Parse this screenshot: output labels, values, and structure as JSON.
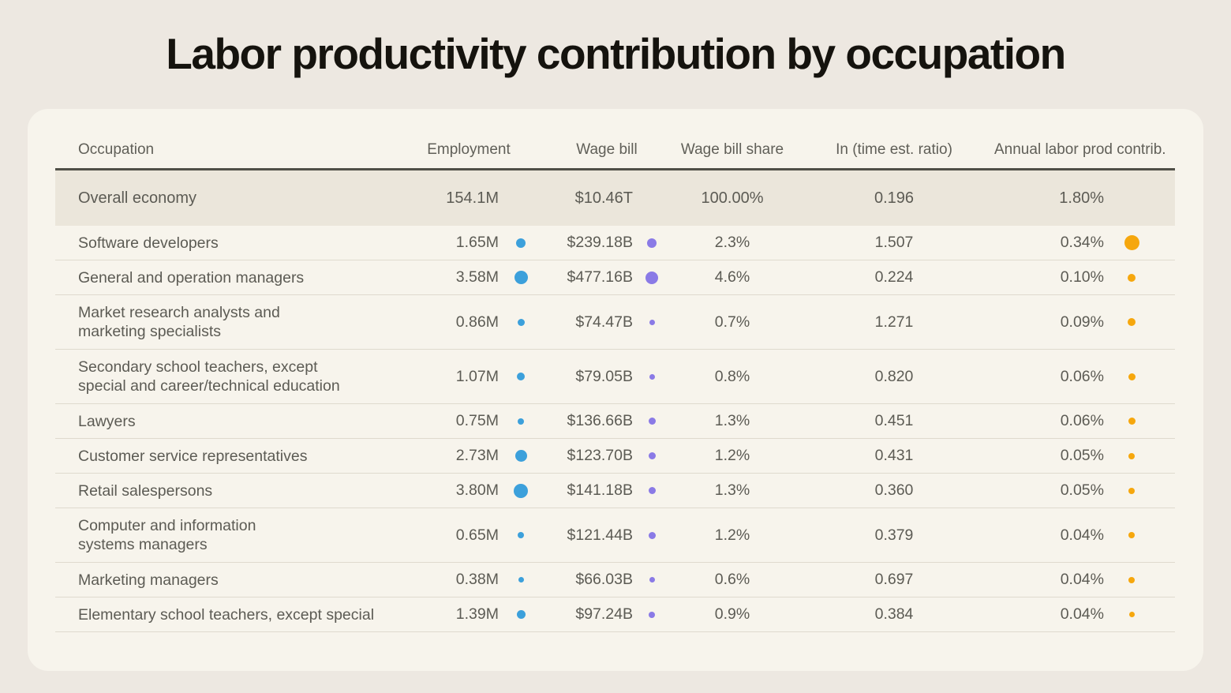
{
  "title": "Labor productivity contribution by occupation",
  "colors": {
    "page_bg": "#EDE8E1",
    "card_bg": "#F7F4EC",
    "summary_row_bg": "#EBE6DB",
    "header_rule": "#504F47",
    "row_rule": "#DFDACE",
    "title_text": "#15130E",
    "body_text": "#5C5B54",
    "header_text": "#605F58"
  },
  "chart_data": {
    "type": "table",
    "title": "Labor productivity contribution by occupation",
    "columns": [
      "Occupation",
      "Employment",
      "Wage bill",
      "Wage bill share",
      "In (time est. ratio)",
      "Annual labor prod contrib."
    ],
    "bubble_encoding": "dot diameter scales with column value",
    "dot_colors": {
      "employment": "#3CA0DB",
      "wage_bill": "#8A7AE6",
      "contrib": "#F6A70D"
    },
    "summary": {
      "occupation": "Overall economy",
      "employment": "154.1M",
      "wage_bill": "$10.46T",
      "share": "100.00%",
      "ratio": "0.196",
      "contrib": "1.80%"
    },
    "rows": [
      {
        "occupation": "Software developers",
        "lines": [
          "Software developers"
        ],
        "employment": "1.65M",
        "emp_dot": 12,
        "wage_bill": "$239.18B",
        "wage_dot": 12,
        "share": "2.3%",
        "ratio": "1.507",
        "contrib": "0.34%",
        "contrib_dot": 19
      },
      {
        "occupation": "General and operation managers",
        "lines": [
          "General and operation managers"
        ],
        "employment": "3.58M",
        "emp_dot": 17,
        "wage_bill": "$477.16B",
        "wage_dot": 16,
        "share": "4.6%",
        "ratio": "0.224",
        "contrib": "0.10%",
        "contrib_dot": 10
      },
      {
        "occupation": "Market research analysts and marketing specialists",
        "lines": [
          "Market research analysts and",
          "marketing specialists"
        ],
        "employment": "0.86M",
        "emp_dot": 9,
        "wage_bill": "$74.47B",
        "wage_dot": 7,
        "share": "0.7%",
        "ratio": "1.271",
        "contrib": "0.09%",
        "contrib_dot": 10
      },
      {
        "occupation": "Secondary school teachers, except special and career/technical education",
        "lines": [
          "Secondary school teachers, except",
          "special and career/technical education"
        ],
        "employment": "1.07M",
        "emp_dot": 10,
        "wage_bill": "$79.05B",
        "wage_dot": 7,
        "share": "0.8%",
        "ratio": "0.820",
        "contrib": "0.06%",
        "contrib_dot": 9
      },
      {
        "occupation": "Lawyers",
        "lines": [
          "Lawyers"
        ],
        "employment": "0.75M",
        "emp_dot": 8,
        "wage_bill": "$136.66B",
        "wage_dot": 9,
        "share": "1.3%",
        "ratio": "0.451",
        "contrib": "0.06%",
        "contrib_dot": 9
      },
      {
        "occupation": "Customer service representatives",
        "lines": [
          "Customer service representatives"
        ],
        "employment": "2.73M",
        "emp_dot": 15,
        "wage_bill": "$123.70B",
        "wage_dot": 9,
        "share": "1.2%",
        "ratio": "0.431",
        "contrib": "0.05%",
        "contrib_dot": 8
      },
      {
        "occupation": "Retail salespersons",
        "lines": [
          "Retail salespersons"
        ],
        "employment": "3.80M",
        "emp_dot": 18,
        "wage_bill": "$141.18B",
        "wage_dot": 9,
        "share": "1.3%",
        "ratio": "0.360",
        "contrib": "0.05%",
        "contrib_dot": 8
      },
      {
        "occupation": "Computer and information systems managers",
        "lines": [
          "Computer and information",
          "systems managers"
        ],
        "employment": "0.65M",
        "emp_dot": 8,
        "wage_bill": "$121.44B",
        "wage_dot": 9,
        "share": "1.2%",
        "ratio": "0.379",
        "contrib": "0.04%",
        "contrib_dot": 8
      },
      {
        "occupation": "Marketing managers",
        "lines": [
          "Marketing managers"
        ],
        "employment": "0.38M",
        "emp_dot": 7,
        "wage_bill": "$66.03B",
        "wage_dot": 7,
        "share": "0.6%",
        "ratio": "0.697",
        "contrib": "0.04%",
        "contrib_dot": 8
      },
      {
        "occupation": "Elementary school teachers, except special",
        "lines": [
          "Elementary school teachers, except special"
        ],
        "employment": "1.39M",
        "emp_dot": 11,
        "wage_bill": "$97.24B",
        "wage_dot": 8,
        "share": "0.9%",
        "ratio": "0.384",
        "contrib": "0.04%",
        "contrib_dot": 7
      }
    ]
  }
}
